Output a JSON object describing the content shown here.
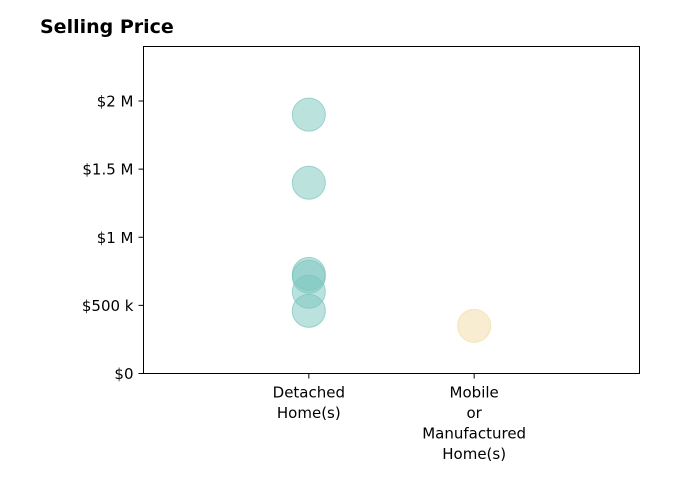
{
  "chart_data": {
    "type": "scatter",
    "title": "Selling Price",
    "xlabel": "",
    "ylabel": "",
    "categories": [
      "Detached\nHome(s)",
      "Mobile\nor\nManufactured\nHome(s)"
    ],
    "xlim": [
      -1,
      2
    ],
    "ylim": [
      0,
      2400000
    ],
    "yticks": [
      0,
      500000,
      1000000,
      1500000,
      2000000
    ],
    "ytick_labels": [
      "$0",
      "$500 k",
      "$1 M",
      "$1.5 M",
      "$2 M"
    ],
    "grid": false,
    "series": [
      {
        "category": "Detached\nHome(s)",
        "color": "#7ac5bd",
        "opacity": 0.5,
        "values": [
          1900000,
          1400000,
          730000,
          710000,
          600000,
          460000
        ]
      },
      {
        "category": "Mobile\nor\nManufactured\nHome(s)",
        "color": "#f4dfb2",
        "opacity": 0.6,
        "values": [
          350000
        ]
      }
    ]
  }
}
